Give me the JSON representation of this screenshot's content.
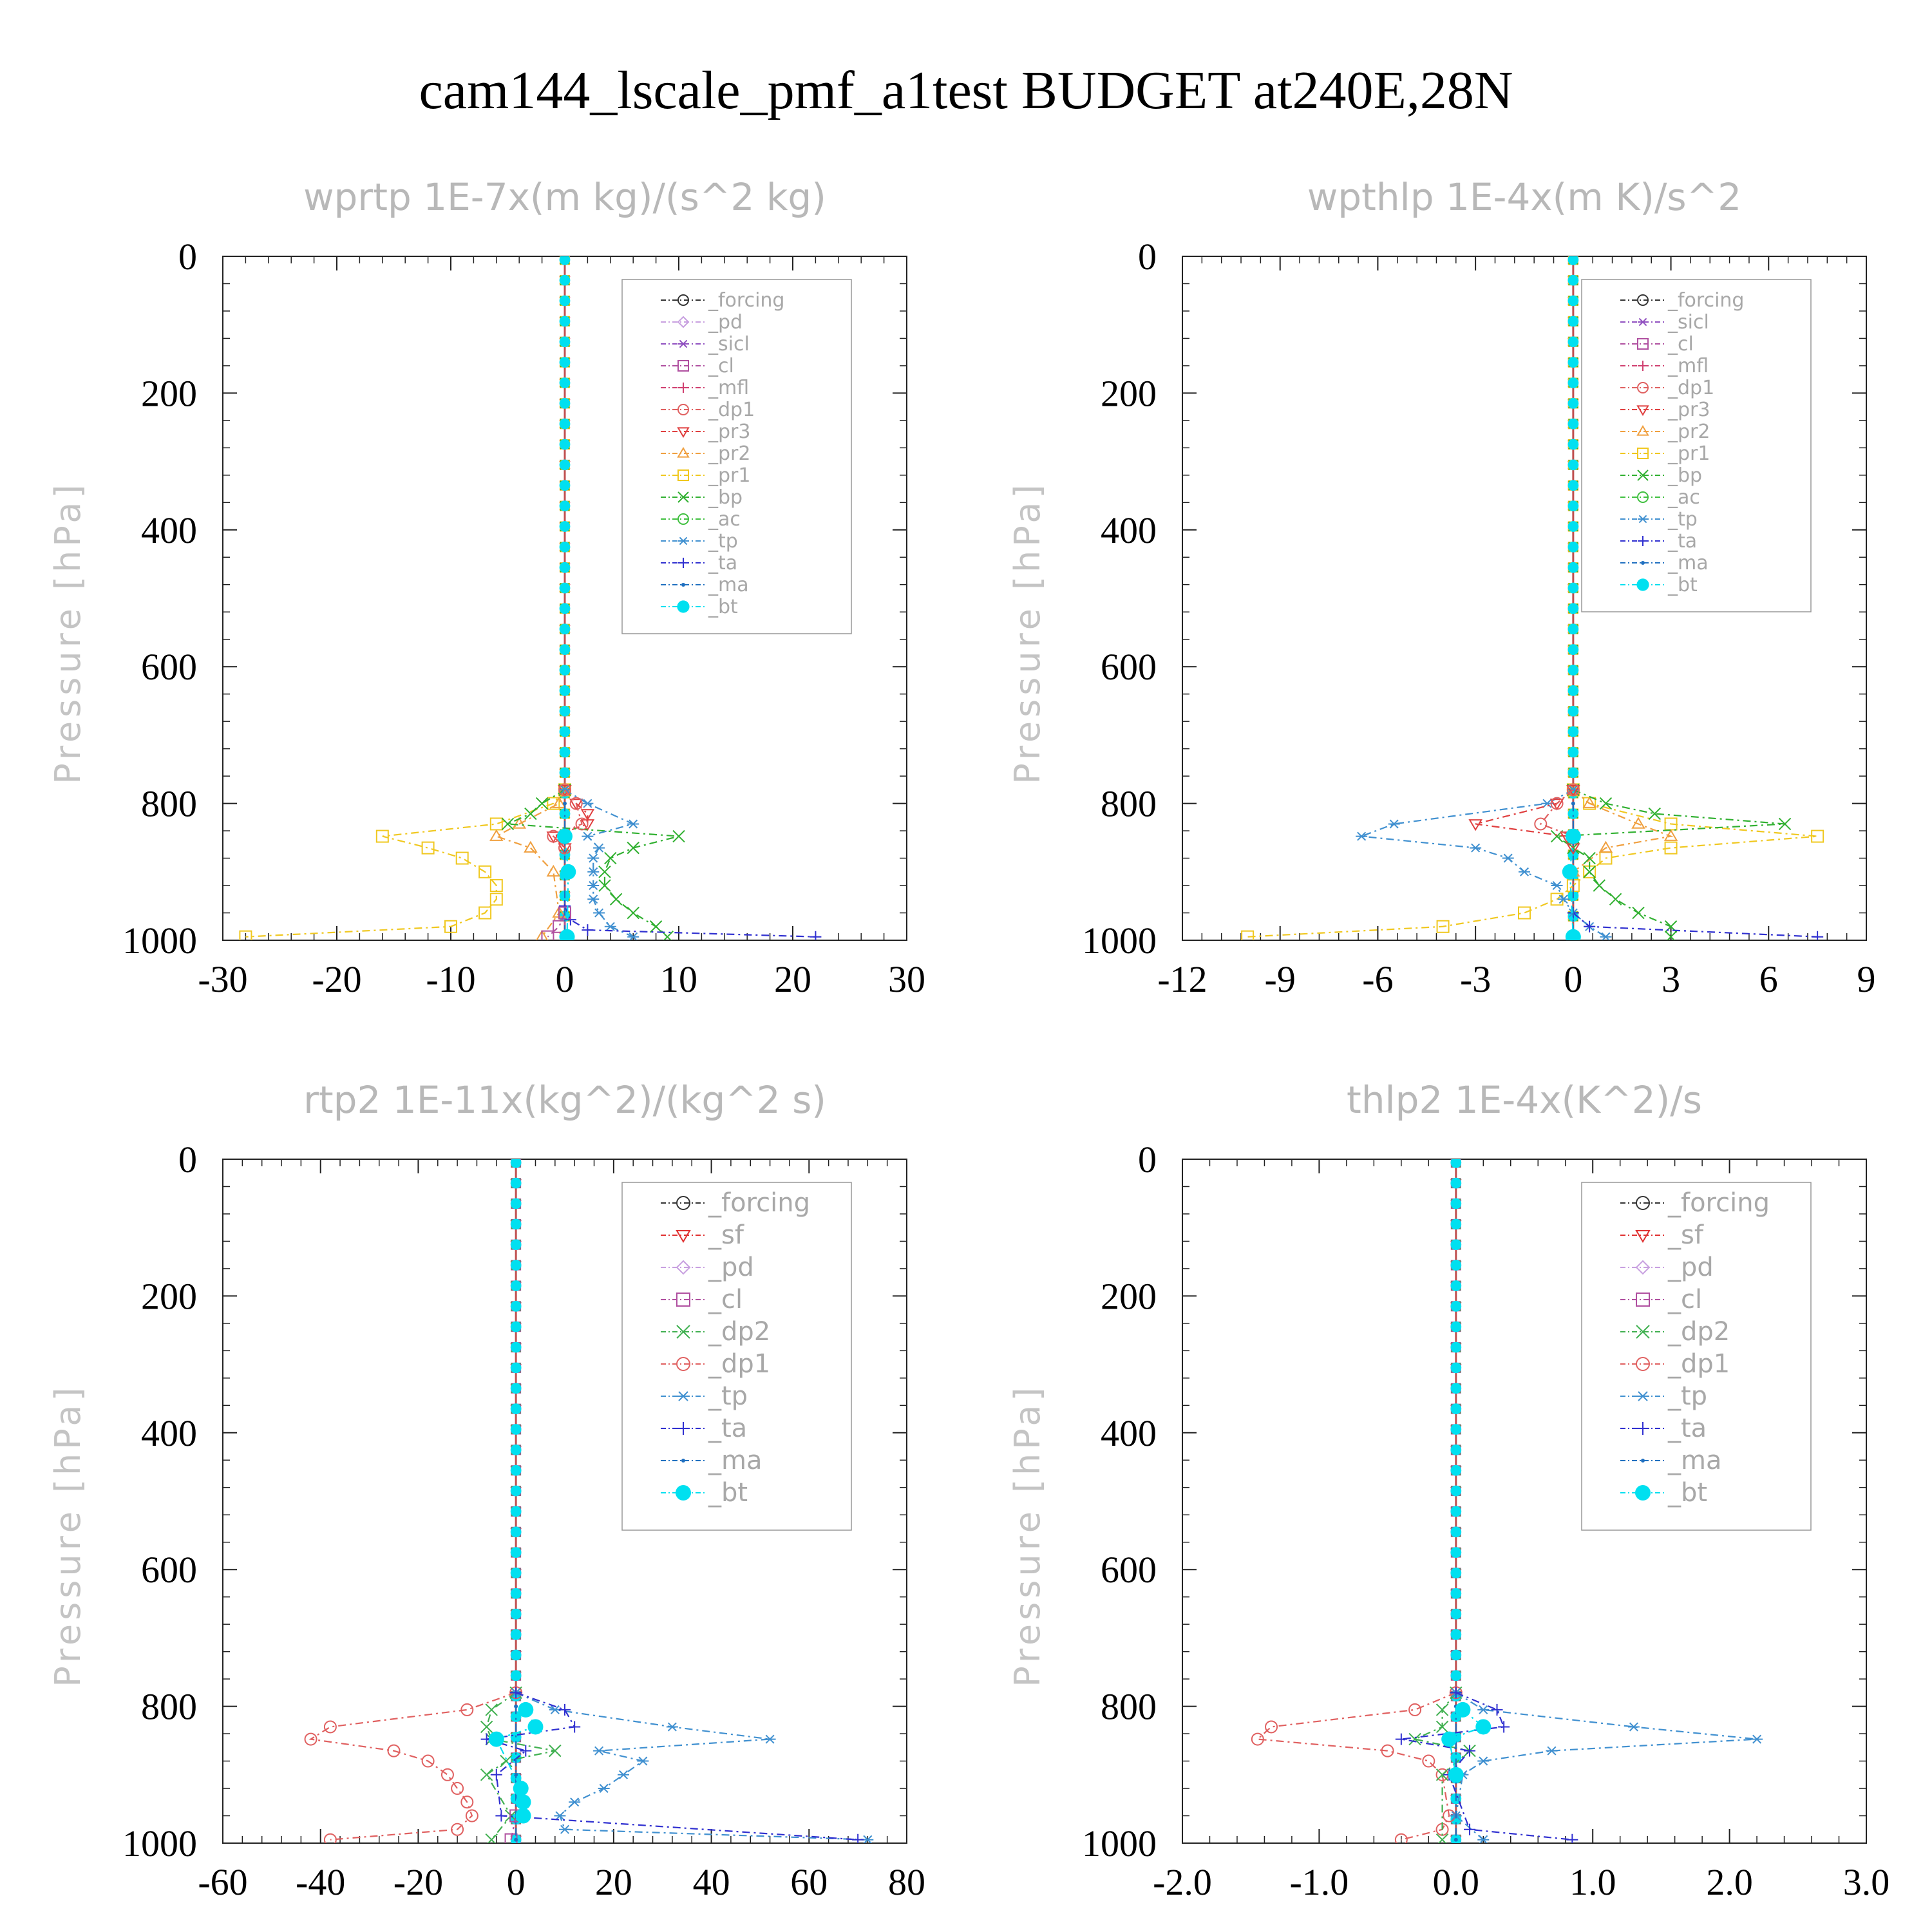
{
  "figure": {
    "title": "cam144_lscale_pmf_a1test  BUDGET at240E,28N"
  },
  "colors": {
    "axis": "#222222",
    "title": "#000000",
    "panel_title": "#b8b8b8",
    "legend_text": "#a8a8a8",
    "_forcing_wprtp": "#333333",
    "_forcing": "#e06070",
    "_pd": "#c8a0e0",
    "_sicl": "#9050c0",
    "_cl": "#b050a0",
    "_mfl": "#d04070",
    "_dp1": "#e06060",
    "_pr3": "#e04040",
    "_pr2": "#f0a040",
    "_pr1": "#f0c820",
    "_bp": "#30b030",
    "_ac": "#40c040",
    "_tp": "#4090d0",
    "_ta": "#3030d0",
    "_ma": "#2070c0",
    "_bt": "#00e0f0",
    "_sf": "#e03030",
    "_dp2": "#40b050"
  },
  "chart_data": [
    {
      "type": "line",
      "title": "wprtp   1E-7x(m kg)/(s^2 kg)",
      "ylabel": "Pressure [hPa]",
      "xlim": [
        -30,
        30
      ],
      "ylim": [
        1000,
        0
      ],
      "xticks": [
        "-30",
        "-20",
        "-10",
        "0",
        "10",
        "20",
        "30"
      ],
      "yticks": [
        "0",
        "200",
        "400",
        "600",
        "800",
        "1000"
      ],
      "legend": [
        "_forcing",
        "_pd",
        "_sicl",
        "_cl",
        "_mfl",
        "_dp1",
        "_pr3",
        "_pr2",
        "_pr1",
        "_bp",
        "_ac",
        "_tp",
        "_ta",
        "_ma",
        "_bt"
      ],
      "legend_position": "top-right",
      "series": [
        {
          "name": "_pr1",
          "pressure": [
            780,
            800,
            830,
            848,
            865,
            880,
            900,
            920,
            940,
            960,
            980,
            995
          ],
          "values": [
            0,
            -1,
            -6,
            -16,
            -12,
            -9,
            -7,
            -6,
            -6,
            -7,
            -10,
            -28
          ]
        },
        {
          "name": "_pr2",
          "pressure": [
            780,
            800,
            830,
            848,
            865,
            900,
            960,
            995
          ],
          "values": [
            0,
            -0.5,
            -4,
            -6,
            -3,
            -1,
            -0.5,
            -2
          ]
        },
        {
          "name": "_pr3",
          "pressure": [
            780,
            800,
            815,
            830,
            848,
            865
          ],
          "values": [
            0,
            1,
            2,
            2,
            -1,
            0
          ]
        },
        {
          "name": "_bp",
          "pressure": [
            780,
            800,
            815,
            830,
            848,
            865,
            880,
            900,
            920,
            940,
            960,
            980,
            995
          ],
          "values": [
            0,
            -2,
            -3,
            -5,
            10,
            6,
            4,
            3.5,
            3.5,
            4.5,
            6,
            8,
            9
          ]
        },
        {
          "name": "_tp",
          "pressure": [
            780,
            800,
            830,
            848,
            865,
            880,
            900,
            920,
            940,
            960,
            980,
            995
          ],
          "values": [
            0,
            2,
            6,
            2,
            3,
            2.5,
            2.5,
            2.5,
            2.5,
            3,
            4,
            6
          ]
        },
        {
          "name": "_ta",
          "pressure": [
            950,
            970,
            985,
            995
          ],
          "values": [
            0,
            0.5,
            2,
            22
          ]
        },
        {
          "name": "_dp1",
          "pressure": [
            780,
            800,
            830,
            848,
            865
          ],
          "values": [
            0,
            1,
            1.5,
            -1,
            0
          ]
        },
        {
          "name": "_cl",
          "pressure": [
            960,
            980,
            995
          ],
          "values": [
            0,
            -0.5,
            -1.5
          ]
        },
        {
          "name": "_ma",
          "pressure": [
            800,
            900,
            995
          ],
          "values": [
            0,
            0,
            0
          ]
        },
        {
          "name": "_bt",
          "pressure": [
            848,
            900,
            995
          ],
          "values": [
            0,
            0.3,
            0.2
          ]
        }
      ]
    },
    {
      "type": "line",
      "title": "wpthlp   1E-4x(m K)/s^2",
      "ylabel": "Pressure [hPa]",
      "xlim": [
        -12,
        9
      ],
      "ylim": [
        1000,
        0
      ],
      "xticks": [
        "-12",
        "-9",
        "-6",
        "-3",
        "0",
        "3",
        "6",
        "9"
      ],
      "yticks": [
        "0",
        "200",
        "400",
        "600",
        "800",
        "1000"
      ],
      "legend": [
        "_forcing",
        "_sicl",
        "_cl",
        "_mfl",
        "_dp1",
        "_pr3",
        "_pr2",
        "_pr1",
        "_bp",
        "_ac",
        "_tp",
        "_ta",
        "_ma",
        "_bt"
      ],
      "legend_position": "top-right",
      "series": [
        {
          "name": "_pr1",
          "pressure": [
            780,
            800,
            830,
            848,
            865,
            880,
            900,
            920,
            940,
            960,
            980,
            995
          ],
          "values": [
            0,
            0.5,
            3,
            7.5,
            3,
            1,
            0.5,
            0,
            -0.5,
            -1.5,
            -4,
            -10
          ]
        },
        {
          "name": "_pr2",
          "pressure": [
            780,
            800,
            830,
            848,
            865,
            900
          ],
          "values": [
            0,
            0.5,
            2,
            3,
            1,
            0
          ]
        },
        {
          "name": "_bp",
          "pressure": [
            780,
            800,
            815,
            830,
            848,
            865,
            880,
            900,
            920,
            940,
            960,
            980,
            995
          ],
          "values": [
            0,
            1,
            2.5,
            6.5,
            -0.5,
            0,
            0.5,
            0.5,
            0.8,
            1.3,
            2,
            3,
            3
          ]
        },
        {
          "name": "_tp",
          "pressure": [
            780,
            800,
            830,
            848,
            865,
            880,
            900,
            920,
            940,
            960,
            980,
            995
          ],
          "values": [
            0,
            -0.8,
            -5.5,
            -6.5,
            -3,
            -2,
            -1.5,
            -0.5,
            -0.3,
            0,
            0.5,
            1
          ]
        },
        {
          "name": "_pr3",
          "pressure": [
            780,
            800,
            830,
            848,
            865
          ],
          "values": [
            0,
            -0.5,
            -3,
            -0.2,
            0
          ]
        },
        {
          "name": "_dp1",
          "pressure": [
            780,
            800,
            830,
            848
          ],
          "values": [
            0,
            -0.5,
            -1,
            0
          ]
        },
        {
          "name": "_ta",
          "pressure": [
            960,
            980,
            995
          ],
          "values": [
            0,
            0.5,
            7.5
          ]
        },
        {
          "name": "_ma",
          "pressure": [
            800,
            900,
            995
          ],
          "values": [
            0,
            0,
            0
          ]
        },
        {
          "name": "_bt",
          "pressure": [
            848,
            900,
            995
          ],
          "values": [
            0,
            -0.1,
            0
          ]
        }
      ]
    },
    {
      "type": "line",
      "title": "rtp2   1E-11x(kg^2)/(kg^2 s)",
      "ylabel": "Pressure [hPa]",
      "xlim": [
        -60,
        80
      ],
      "ylim": [
        1000,
        0
      ],
      "xticks": [
        "-60",
        "-40",
        "-20",
        "0",
        "20",
        "40",
        "60",
        "80"
      ],
      "yticks": [
        "0",
        "200",
        "400",
        "600",
        "800",
        "1000"
      ],
      "legend": [
        "_forcing",
        "_sf",
        "_pd",
        "_cl",
        "_dp2",
        "_dp1",
        "_tp",
        "_ta",
        "_ma",
        "_bt"
      ],
      "legend_position": "top-right",
      "series": [
        {
          "name": "_dp1",
          "pressure": [
            780,
            805,
            830,
            848,
            865,
            880,
            900,
            920,
            940,
            960,
            980,
            995
          ],
          "values": [
            0,
            -10,
            -38,
            -42,
            -25,
            -18,
            -14,
            -12,
            -10,
            -9,
            -12,
            -38
          ]
        },
        {
          "name": "_dp2",
          "pressure": [
            780,
            805,
            830,
            848,
            865,
            880,
            900,
            960,
            995
          ],
          "values": [
            0,
            -5,
            -6,
            -5,
            8,
            -2,
            -6,
            -1,
            -5
          ]
        },
        {
          "name": "_tp",
          "pressure": [
            780,
            805,
            830,
            848,
            865,
            880,
            900,
            920,
            940,
            960,
            980,
            995
          ],
          "values": [
            0,
            8,
            32,
            52,
            17,
            26,
            22,
            18,
            12,
            9,
            10,
            72
          ]
        },
        {
          "name": "_ta",
          "pressure": [
            780,
            805,
            830,
            848,
            865,
            900,
            960,
            995
          ],
          "values": [
            0,
            10,
            12,
            -6,
            2,
            -4,
            -3,
            70
          ]
        },
        {
          "name": "_cl",
          "pressure": [
            960,
            995
          ],
          "values": [
            0,
            -1
          ]
        },
        {
          "name": "_ma",
          "pressure": [
            800,
            900,
            995
          ],
          "values": [
            0,
            0,
            0
          ]
        },
        {
          "name": "_bt",
          "pressure": [
            805,
            830,
            848,
            920,
            940,
            960
          ],
          "values": [
            2,
            4,
            -4,
            1,
            1.5,
            1.5
          ]
        }
      ]
    },
    {
      "type": "line",
      "title": "thlp2   1E-4x(K^2)/s",
      "ylabel": "Pressure [hPa]",
      "xlim": [
        -2.0,
        3.0
      ],
      "ylim": [
        1000,
        0
      ],
      "xticks": [
        "-2.0",
        "-1.0",
        "0.0",
        "1.0",
        "2.0",
        "3.0"
      ],
      "yticks": [
        "0",
        "200",
        "400",
        "600",
        "800",
        "1000"
      ],
      "legend": [
        "_forcing",
        "_sf",
        "_pd",
        "_cl",
        "_dp2",
        "_dp1",
        "_tp",
        "_ta",
        "_ma",
        "_bt"
      ],
      "legend_position": "top-right",
      "series": [
        {
          "name": "_dp1",
          "pressure": [
            780,
            805,
            830,
            848,
            865,
            880,
            900,
            960,
            980,
            995
          ],
          "values": [
            0,
            -0.3,
            -1.35,
            -1.45,
            -0.5,
            -0.2,
            -0.1,
            -0.05,
            -0.1,
            -0.4
          ]
        },
        {
          "name": "_dp2",
          "pressure": [
            780,
            805,
            830,
            848,
            865,
            900,
            995
          ],
          "values": [
            0,
            -0.1,
            -0.1,
            -0.3,
            0.1,
            -0.1,
            -0.1
          ]
        },
        {
          "name": "_tp",
          "pressure": [
            780,
            805,
            830,
            848,
            865,
            880,
            900,
            960,
            995
          ],
          "values": [
            0,
            0.2,
            1.3,
            2.2,
            0.7,
            0.2,
            0.05,
            0,
            0.2
          ]
        },
        {
          "name": "_ta",
          "pressure": [
            780,
            805,
            830,
            848,
            865,
            900,
            980,
            995
          ],
          "values": [
            0,
            0.3,
            0.35,
            -0.4,
            0.1,
            -0.05,
            0.1,
            0.85
          ]
        },
        {
          "name": "_ma",
          "pressure": [
            800,
            900,
            995
          ],
          "values": [
            0,
            0,
            0
          ]
        },
        {
          "name": "_bt",
          "pressure": [
            805,
            830,
            848,
            900
          ],
          "values": [
            0.05,
            0.2,
            -0.05,
            0
          ]
        }
      ]
    }
  ]
}
